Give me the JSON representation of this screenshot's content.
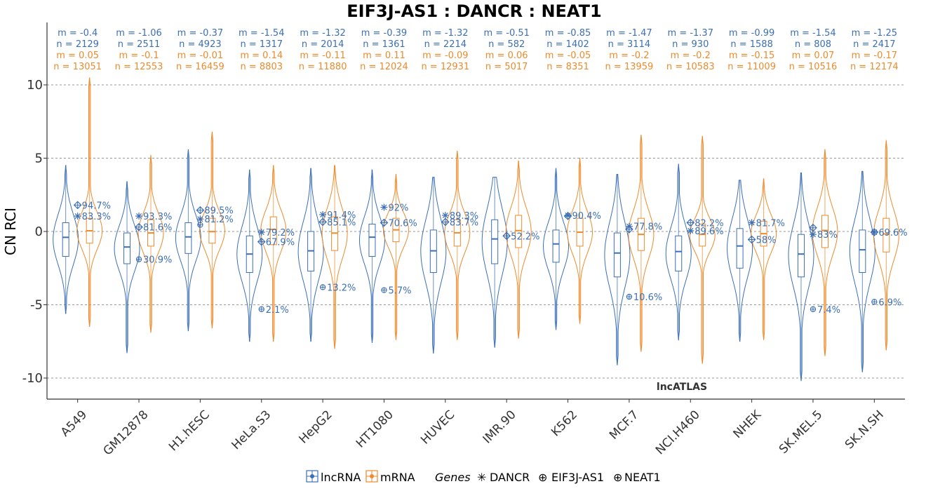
{
  "colors": {
    "lncRNA": "#3b6fb6",
    "mRNA": "#ee8a2a",
    "grid": "#9a9a9a",
    "axis": "#333333"
  },
  "watermark": "lncATLAS",
  "legend": {
    "type_items": [
      "lncRNA",
      "mRNA"
    ],
    "genes_title": "Genes",
    "gene_items": [
      {
        "symbol": "✳",
        "label": "DANCR"
      },
      {
        "symbol": "⊕",
        "label": "EIF3J-AS1"
      },
      {
        "symbol": "⊕",
        "label": "NEAT1"
      }
    ]
  },
  "chart_data": {
    "type": "violin-box",
    "title": "EIF3J-AS1 : DANCR : NEAT1",
    "ylabel": "CN RCI",
    "xlabel": "",
    "ylim": [
      -11,
      14
    ],
    "yticks": [
      10,
      5,
      0,
      -5,
      -10
    ],
    "ytick_labels": [
      "10",
      "5",
      "0",
      "-5",
      "-10"
    ],
    "grid": "horizontal dashed",
    "categories": [
      "A549",
      "GM12878",
      "H1.hESC",
      "HeLa.S3",
      "HepG2",
      "HT1080",
      "HUVEC",
      "IMR.90",
      "K562",
      "MCF.7",
      "NCI.H460",
      "NHEK",
      "SK.MEL.5",
      "SK.N.SH"
    ],
    "series": [
      {
        "name": "lncRNA",
        "m_labels": [
          "m = -0.4",
          "m = -1.06",
          "m = -0.37",
          "m = -1.54",
          "m = -1.32",
          "m = -0.39",
          "m = -1.32",
          "m = -0.51",
          "m = -0.85",
          "m = -1.47",
          "m = -1.37",
          "m = -0.99",
          "m = -1.54",
          "m = -1.25"
        ],
        "n_labels": [
          "n = 2129",
          "n = 2511",
          "n = 4923",
          "n = 1317",
          "n = 2014",
          "n = 1361",
          "n = 2214",
          "n = 582",
          "n = 1402",
          "n = 3114",
          "n = 930",
          "n = 1588",
          "n = 808",
          "n = 2417"
        ],
        "median": [
          -0.4,
          -1.06,
          -0.37,
          -1.54,
          -1.32,
          -0.39,
          -1.32,
          -0.51,
          -0.85,
          -1.47,
          -1.37,
          -0.99,
          -1.54,
          -1.25
        ],
        "q1": [
          -1.7,
          -2.2,
          -1.5,
          -2.8,
          -2.7,
          -1.7,
          -2.8,
          -2.2,
          -2.1,
          -3.1,
          -2.7,
          -2.5,
          -3.1,
          -2.8
        ],
        "q3": [
          0.6,
          -0.1,
          0.6,
          -0.3,
          0.0,
          0.5,
          0.1,
          0.8,
          0.1,
          -0.1,
          -0.3,
          0.2,
          -0.2,
          0.1
        ],
        "min": [
          -5.6,
          -8.3,
          -6.8,
          -7.5,
          -7.5,
          -7.6,
          -8.3,
          -7.9,
          -6.7,
          -9.1,
          -7.4,
          -7.5,
          -10.2,
          -9.6
        ],
        "max": [
          4.5,
          3.4,
          5.6,
          4.2,
          4.3,
          4.2,
          3.7,
          3.7,
          4.3,
          3.9,
          4.6,
          3.5,
          4.0,
          4.1
        ]
      },
      {
        "name": "mRNA",
        "m_labels": [
          "m = 0.05",
          "m = -0.1",
          "m = -0.01",
          "m = 0.14",
          "m = -0.11",
          "m = 0.11",
          "m = -0.09",
          "m = 0.06",
          "m = -0.05",
          "m = -0.2",
          "m = -0.2",
          "m = -0.15",
          "m = 0.07",
          "m = -0.17"
        ],
        "n_labels": [
          "n = 13051",
          "n = 12553",
          "n = 16459",
          "n = 8803",
          "n = 11880",
          "n = 12024",
          "n = 12931",
          "n = 5017",
          "n = 8351",
          "n = 13959",
          "n = 10583",
          "n = 11009",
          "n = 10516",
          "n = 12174"
        ],
        "median": [
          0.05,
          -0.1,
          -0.01,
          0.14,
          -0.11,
          0.11,
          -0.09,
          0.06,
          -0.05,
          -0.2,
          -0.2,
          -0.15,
          0.07,
          -0.17
        ],
        "q1": [
          -0.8,
          -1.0,
          -0.8,
          -0.9,
          -1.3,
          -0.7,
          -1.0,
          -1.1,
          -1.0,
          -1.3,
          -1.0,
          -1.0,
          -1.1,
          -1.4
        ],
        "q3": [
          0.9,
          0.8,
          0.9,
          1.0,
          1.0,
          0.9,
          0.8,
          1.1,
          0.9,
          0.9,
          0.5,
          0.7,
          1.1,
          0.9
        ],
        "min": [
          -6.5,
          -6.9,
          -6.6,
          -7.5,
          -8.0,
          -7.4,
          -7.4,
          -7.3,
          -6.3,
          -8.2,
          -9.0,
          -7.4,
          -8.5,
          -8.1
        ],
        "max": [
          10.5,
          5.2,
          6.8,
          4.5,
          4.5,
          3.9,
          5.5,
          4.8,
          5.0,
          6.6,
          6.5,
          3.6,
          5.6,
          6.2
        ]
      }
    ],
    "gene_points": {
      "DANCR": {
        "y": [
          1.05,
          1.05,
          0.85,
          -0.05,
          1.15,
          1.65,
          1.1,
          null,
          1.1,
          0.35,
          0.05,
          0.6,
          -0.2,
          -0.05
        ],
        "pct": [
          "83.3%",
          "93.3%",
          "81.2%",
          "79.2%",
          "91.4%",
          "92%",
          "89.3%",
          null,
          "90.4%",
          "77.8%",
          "89.6%",
          "81.7%",
          "83%",
          "69.6%"
        ]
      },
      "EIF3J-AS1": {
        "y": [
          1.8,
          0.3,
          1.45,
          -0.7,
          0.65,
          0.6,
          0.65,
          -0.3,
          1.05,
          0.15,
          0.6,
          -0.55,
          0.25,
          -0.05
        ],
        "pct": [
          "94.7%",
          "81.6%",
          "89.5%",
          "67.9%",
          "85.1%",
          "70.6%",
          "83.7%",
          "52.2%",
          null,
          null,
          "82.2%",
          "58%",
          null,
          null
        ]
      },
      "NEAT1": {
        "y": [
          null,
          -1.9,
          0.45,
          -5.3,
          -3.8,
          -4.0,
          null,
          null,
          null,
          -4.45,
          null,
          null,
          -5.3,
          -4.8
        ],
        "pct": [
          null,
          "30.9%",
          null,
          "2.1%",
          "13.2%",
          "5.7%",
          null,
          null,
          null,
          "10.6%",
          null,
          null,
          "7.4%",
          "6.9%"
        ]
      }
    }
  }
}
